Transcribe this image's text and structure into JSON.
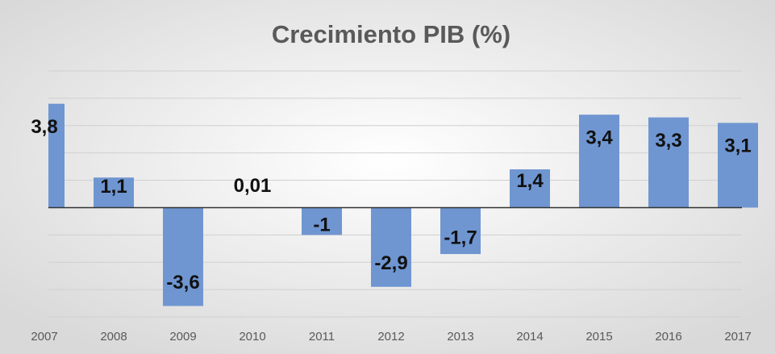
{
  "chart_data": {
    "type": "bar",
    "title": "Crecimiento PIB (%)",
    "categories": [
      "2007",
      "2008",
      "2009",
      "2010",
      "2011",
      "2012",
      "2013",
      "2014",
      "2015",
      "2016",
      "2017"
    ],
    "values": [
      3.8,
      1.1,
      -3.6,
      0.01,
      -1,
      -2.9,
      -1.7,
      1.4,
      3.4,
      3.3,
      3.1
    ],
    "value_labels": [
      "3,8",
      "1,1",
      "-3,6",
      "0,01",
      "-1",
      "-2,9",
      "-1,7",
      "1,4",
      "3,4",
      "3,3",
      "3,1"
    ],
    "color": "#6f96d1",
    "ylim": [
      -4,
      5
    ],
    "yticks": [
      -4,
      -3,
      -2,
      -1,
      0,
      1,
      2,
      3,
      4,
      5
    ],
    "grid": true
  }
}
